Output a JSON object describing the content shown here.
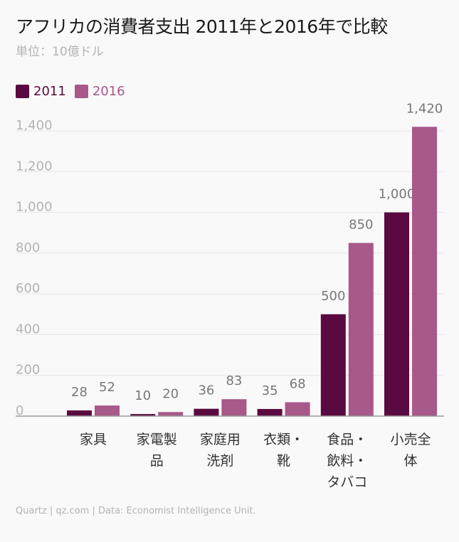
{
  "title": "アフリカの消費者支出 2011年と2016年で比較",
  "subtitle": "単位：10億ドル",
  "footer": "Quartz | qz.com | Data: Economist Intelligence Unit.",
  "colors": {
    "series_2011": "#5a0a40",
    "series_2016": "#a85889",
    "axis_label": "#b3b3b3",
    "data_label": "#777777",
    "category_label": "#333333",
    "grid": "#e6e6e6",
    "baseline": "#999999"
  },
  "chart_data": {
    "type": "bar",
    "categories": [
      [
        "家具"
      ],
      [
        "家電製",
        "品"
      ],
      [
        "家庭用",
        "洗剤"
      ],
      [
        "衣類・",
        "靴"
      ],
      [
        "食品・",
        "飲料・",
        "タバコ"
      ],
      [
        "小売全",
        "体"
      ]
    ],
    "series": [
      {
        "name": "2011",
        "values": [
          28,
          10,
          36,
          35,
          500,
          1000
        ],
        "labels": [
          "28",
          "10",
          "36",
          "35",
          "500",
          "1,000"
        ]
      },
      {
        "name": "2016",
        "values": [
          52,
          20,
          83,
          68,
          850,
          1420
        ],
        "labels": [
          "52",
          "20",
          "83",
          "68",
          "850",
          "1,420"
        ]
      }
    ],
    "yticks": [
      {
        "value": 0,
        "label": "0"
      },
      {
        "value": 200,
        "label": "200"
      },
      {
        "value": 400,
        "label": "400"
      },
      {
        "value": 600,
        "label": "600"
      },
      {
        "value": 800,
        "label": "800"
      },
      {
        "value": 1000,
        "label": "1,000"
      },
      {
        "value": 1200,
        "label": "1,200"
      },
      {
        "value": 1400,
        "label": "1,400"
      }
    ],
    "ylim": [
      0,
      1400
    ],
    "grid": true,
    "legend_position": "top-left"
  }
}
